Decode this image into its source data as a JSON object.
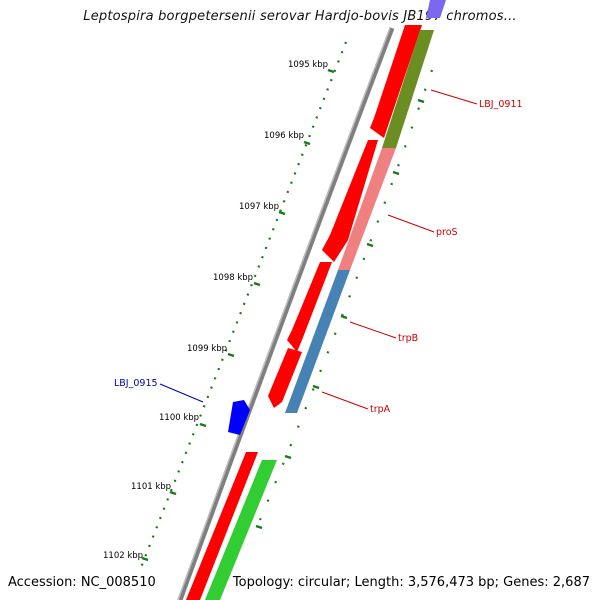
{
  "title": "Leptospira borgpetersenii serovar Hardjo-bovis JB197 chromos...",
  "accession": "Accession: NC_008510",
  "topology": "Topology: circular; Length: 3,576,473 bp; Genes: 2,687",
  "ticks": [
    {
      "label": "1095 kbp"
    },
    {
      "label": "1096 kbp"
    },
    {
      "label": "1097 kbp"
    },
    {
      "label": "1098 kbp"
    },
    {
      "label": "1099 kbp"
    },
    {
      "label": "1100 kbp"
    },
    {
      "label": "1101 kbp"
    },
    {
      "label": "1102 kbp"
    }
  ],
  "gene_labels": [
    {
      "name": "LBJ_0911",
      "color": "#cc0000"
    },
    {
      "name": "proS",
      "color": "#cc0000"
    },
    {
      "name": "trpB",
      "color": "#cc0000"
    },
    {
      "name": "trpA",
      "color": "#cc0000"
    },
    {
      "name": "LBJ_0915",
      "color": "#0000aa"
    }
  ],
  "colors": {
    "backbone": "#8a8a8a",
    "cds_strand": "#ff0000",
    "tick_marks": "#1a7a1a",
    "gene_LBJ_0911": "#6b8e23",
    "gene_proS": "#f08080",
    "gene_trp": "#4682b4",
    "gene_LBJ_0915": "#0000ff",
    "gene_green": "#32cd32",
    "gene_purple": "#7b68ee"
  }
}
